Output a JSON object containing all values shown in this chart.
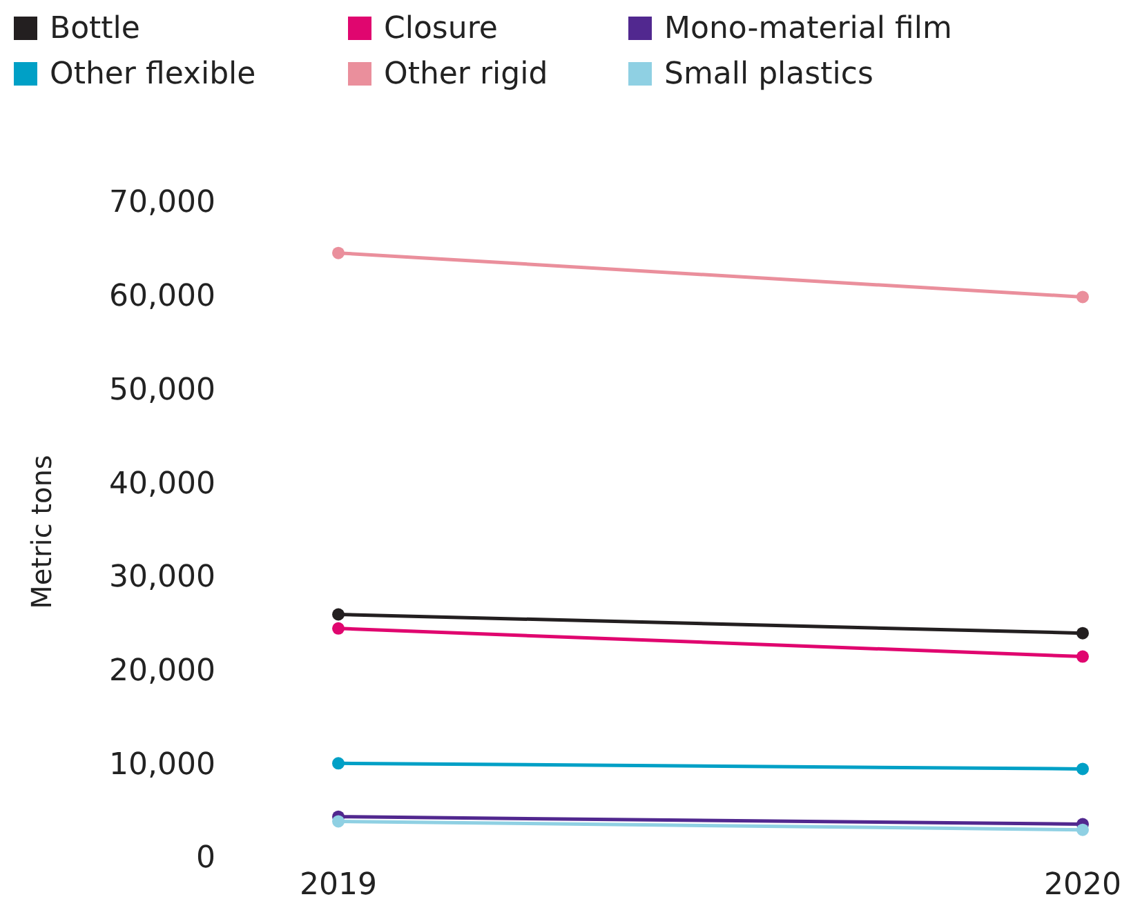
{
  "chart_data": {
    "type": "line",
    "ylabel": "Metric tons",
    "categories": [
      "2019",
      "2020"
    ],
    "series": [
      {
        "name": "Bottle",
        "color": "#231f20",
        "values": [
          25900,
          23900
        ]
      },
      {
        "name": "Closure",
        "color": "#e0066f",
        "values": [
          24400,
          21400
        ]
      },
      {
        "name": "Mono-material film",
        "color": "#51288f",
        "values": [
          4300,
          3500
        ]
      },
      {
        "name": "Other flexible",
        "color": "#00a0c6",
        "values": [
          10000,
          9400
        ]
      },
      {
        "name": "Other rigid",
        "color": "#ea8f9c",
        "values": [
          64500,
          59800
        ]
      },
      {
        "name": "Small plastics",
        "color": "#8fd0e3",
        "values": [
          3800,
          2900
        ]
      }
    ],
    "ylim": [
      0,
      70000
    ],
    "yticks": [
      0,
      {
        "value": 10000,
        "label": "10,000"
      },
      {
        "value": 20000,
        "label": "20,000"
      },
      {
        "value": 30000,
        "label": "30,000"
      },
      {
        "value": 40000,
        "label": "40,000"
      },
      {
        "value": 50000,
        "label": "50,000"
      },
      {
        "value": 60000,
        "label": "60,000"
      },
      {
        "value": 70000,
        "label": "70,000"
      }
    ],
    "legend": "top",
    "marker": "circle",
    "line_style": "solid",
    "grid": false
  }
}
